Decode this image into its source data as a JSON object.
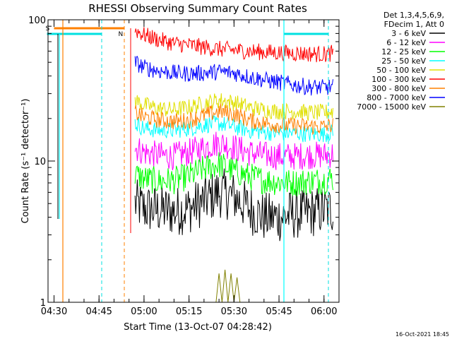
{
  "chart_data": {
    "type": "line",
    "title": "RHESSI Observing Summary Count Rates",
    "xlabel": "Start Time (13-Oct-07 04:28:42)",
    "ylabel": "Count Rate (s⁻¹ detector⁻¹)",
    "yscale": "log",
    "xlim": [
      "04:28",
      "06:05"
    ],
    "ylim": [
      1,
      100
    ],
    "x_ticks": [
      "04:30",
      "04:45",
      "05:00",
      "05:15",
      "05:30",
      "05:45",
      "06:00"
    ],
    "y_ticks": [
      "1",
      "10",
      "100"
    ],
    "grid": false,
    "legend_position": "top-right",
    "legend_header": [
      "Det 1,3,4,5,6,9,",
      "FDecim 1, Att 0"
    ],
    "footer_date": "16-Oct-2021 18:45",
    "markers": [
      {
        "label": "S",
        "time": "04:30",
        "color": "#ff8000"
      },
      {
        "label": "N",
        "time": "04:50",
        "color": "#00e0e0"
      }
    ],
    "series": [
      {
        "name": "3 - 6 keV",
        "color": "#000000",
        "times": [
          "04:57",
          "05:00",
          "05:05",
          "05:10",
          "05:15",
          "05:20",
          "05:25",
          "05:30",
          "05:35",
          "05:40",
          "05:45",
          "05:50",
          "05:55",
          "06:00",
          "06:03"
        ],
        "values": [
          5.0,
          4.6,
          4.5,
          4.4,
          4.6,
          5.2,
          6.0,
          5.6,
          4.6,
          4.0,
          4.0,
          4.2,
          4.3,
          4.5,
          4.6
        ]
      },
      {
        "name": "6 - 12 keV",
        "color": "#ff00ff",
        "times": [
          "04:57",
          "05:00",
          "05:05",
          "05:10",
          "05:15",
          "05:20",
          "05:25",
          "05:30",
          "05:35",
          "05:40",
          "05:45",
          "05:50",
          "05:55",
          "06:00",
          "06:03"
        ],
        "values": [
          12.5,
          11.5,
          11.0,
          10.8,
          11.5,
          12.5,
          13.5,
          12.5,
          11.5,
          11.0,
          10.8,
          10.8,
          11.0,
          11.0,
          11.2
        ]
      },
      {
        "name": "12 - 25 keV",
        "color": "#00ff00",
        "times": [
          "04:57",
          "05:00",
          "05:05",
          "05:10",
          "05:15",
          "05:20",
          "05:25",
          "05:30",
          "05:35",
          "05:40",
          "05:45",
          "05:50",
          "05:55",
          "06:00",
          "06:03"
        ],
        "values": [
          8.0,
          7.5,
          7.2,
          7.3,
          7.8,
          8.8,
          9.5,
          8.5,
          7.8,
          7.3,
          7.1,
          7.0,
          7.2,
          7.3,
          7.6
        ]
      },
      {
        "name": "25 - 50 keV",
        "color": "#00ffff",
        "times": [
          "04:57",
          "05:00",
          "05:05",
          "05:10",
          "05:15",
          "05:20",
          "05:25",
          "05:30",
          "05:35",
          "05:40",
          "05:45",
          "05:50",
          "05:55",
          "06:00",
          "06:03"
        ],
        "values": [
          18.5,
          17.0,
          16.5,
          16.5,
          17.0,
          18.0,
          18.5,
          17.5,
          16.5,
          16.0,
          15.8,
          15.8,
          15.5,
          15.5,
          16.0
        ]
      },
      {
        "name": "50 - 100 keV",
        "color": "#e0e000",
        "times": [
          "04:57",
          "05:00",
          "05:05",
          "05:10",
          "05:15",
          "05:20",
          "05:25",
          "05:30",
          "05:35",
          "05:40",
          "05:45",
          "05:50",
          "05:55",
          "06:00",
          "06:03"
        ],
        "values": [
          27.0,
          25.0,
          23.5,
          23.0,
          24.0,
          25.5,
          27.0,
          26.0,
          24.0,
          23.0,
          22.5,
          22.5,
          22.0,
          22.0,
          22.5
        ]
      },
      {
        "name": "100 - 300 keV",
        "color": "#ff0000",
        "times": [
          "04:57",
          "05:00",
          "05:05",
          "05:10",
          "05:15",
          "05:20",
          "05:25",
          "05:30",
          "05:35",
          "05:40",
          "05:45",
          "05:50",
          "05:55",
          "06:00",
          "06:03"
        ],
        "values": [
          85.0,
          78.0,
          72.0,
          68.0,
          66.0,
          64.0,
          62.0,
          61.0,
          60.0,
          59.0,
          58.5,
          58.0,
          57.5,
          57.0,
          58.0
        ]
      },
      {
        "name": "300 - 800 keV",
        "color": "#ff8000",
        "times": [
          "04:57",
          "05:00",
          "05:05",
          "05:10",
          "05:15",
          "05:20",
          "05:25",
          "05:30",
          "05:35",
          "05:40",
          "05:45",
          "05:50",
          "05:55",
          "06:00",
          "06:03"
        ],
        "values": [
          22.0,
          20.5,
          19.5,
          19.0,
          19.5,
          21.0,
          22.5,
          21.5,
          19.5,
          18.5,
          18.0,
          17.8,
          17.6,
          17.5,
          18.0
        ]
      },
      {
        "name": "800 - 7000 keV",
        "color": "#0000ff",
        "times": [
          "04:57",
          "05:00",
          "05:05",
          "05:10",
          "05:15",
          "05:20",
          "05:25",
          "05:30",
          "05:35",
          "05:40",
          "05:45",
          "05:50",
          "05:55",
          "06:00",
          "06:03"
        ],
        "values": [
          50.0,
          46.0,
          43.5,
          42.0,
          41.5,
          42.0,
          43.0,
          42.0,
          39.5,
          37.5,
          36.0,
          34.5,
          33.5,
          33.0,
          33.5
        ]
      },
      {
        "name": "7000 - 15000 keV",
        "color": "#808000",
        "times": [
          "05:24",
          "05:25",
          "05:26",
          "05:27",
          "05:28",
          "05:29",
          "05:30",
          "05:31",
          "05:32"
        ],
        "values": [
          1.0,
          1.6,
          1.0,
          1.7,
          1.0,
          1.6,
          1.0,
          1.5,
          1.0
        ]
      }
    ]
  }
}
